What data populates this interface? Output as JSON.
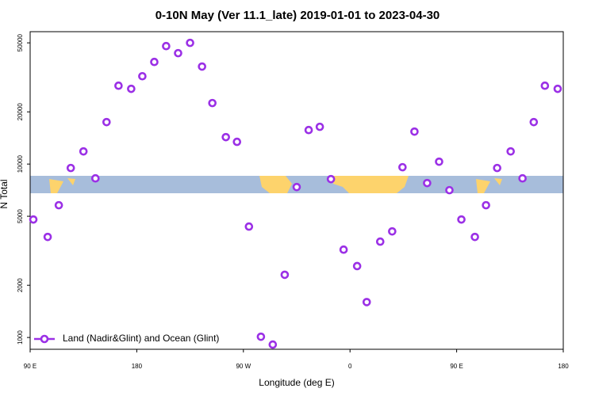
{
  "chart_data": {
    "type": "scatter",
    "title": "0-10N May (Ver 11.1_late)   2019-01-01 to 2023-04-30",
    "x_label": "Longitude (deg E)",
    "y_label": "N Total",
    "log_y": true,
    "legend": "bottom-left",
    "xlim": [
      90,
      540
    ],
    "xticks": [
      {
        "value": 90,
        "label": "90 E"
      },
      {
        "value": 180,
        "label": "180"
      },
      {
        "value": 270,
        "label": "90 W"
      },
      {
        "value": 360,
        "label": "0"
      },
      {
        "value": 450,
        "label": "90 E"
      },
      {
        "value": 540,
        "label": "180"
      }
    ],
    "ylim": [
      855,
      58000
    ],
    "yticks": [
      1000,
      2000,
      5000,
      10000,
      20000,
      50000
    ],
    "series": [
      {
        "name": "Land (Nadir&Glint) and Ocean (Glint)",
        "color": "#9b30e6",
        "x": [
          92.7,
          104.8,
          114.2,
          124.3,
          135,
          145.1,
          154.5,
          164.6,
          175.3,
          184.7,
          194.8,
          204.8,
          214.9,
          225,
          235.1,
          243.8,
          255.2,
          264.6,
          274.7,
          284.8,
          294.8,
          304.9,
          315,
          325.1,
          334.5,
          343.9,
          354.6,
          366,
          374.1,
          385.5,
          395.6,
          404.3,
          414.4,
          425.1,
          435.2,
          443.9,
          454,
          465.4,
          474.8,
          484.2,
          495.6,
          505.6,
          515.1,
          524.5,
          535.3
        ],
        "values": [
          4790,
          3800,
          5790,
          9490,
          11830,
          8270,
          17460,
          28300,
          27160,
          32100,
          38800,
          47900,
          43600,
          50000,
          36500,
          22480,
          14300,
          13430,
          4360,
          1010,
          910,
          2300,
          7370,
          15710,
          16400,
          8190,
          3210,
          2580,
          1600,
          3570,
          4090,
          9590,
          15390,
          7770,
          10320,
          7070,
          4790,
          3800,
          5790,
          9490,
          11830,
          8270,
          17460,
          28300,
          27160
        ]
      }
    ]
  }
}
